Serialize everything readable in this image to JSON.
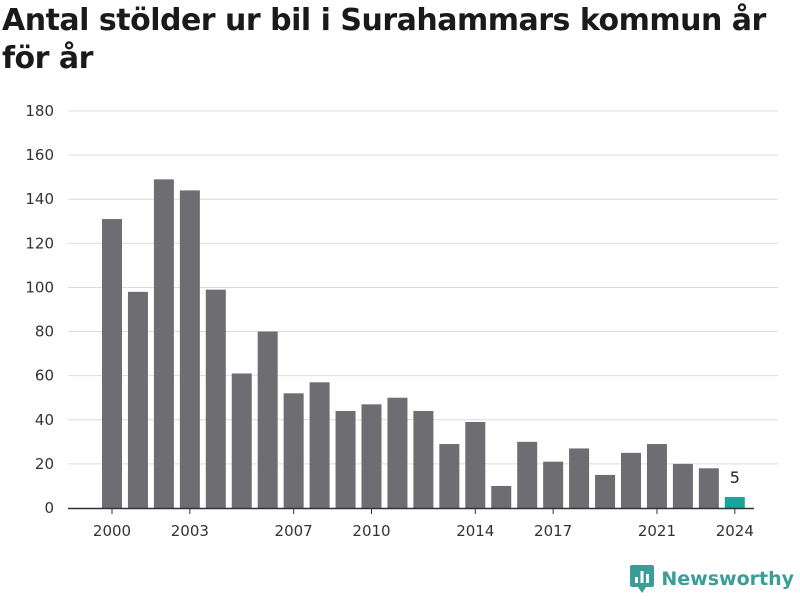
{
  "title": "Antal stölder ur bil i Surahammars kommun år för år",
  "brand": {
    "name": "Newsworthy",
    "icon": "bar-chart-logo-icon",
    "color": "#3a9e97"
  },
  "colors": {
    "bar": "#6e6d72",
    "highlight": "#1aa39a",
    "grid": "#dcdcdc",
    "axis": "#333333"
  },
  "chart_data": {
    "type": "bar",
    "title": "Antal stölder ur bil i Surahammars kommun år för år",
    "xlabel": "",
    "ylabel": "",
    "x": [
      2000,
      2001,
      2002,
      2003,
      2004,
      2005,
      2006,
      2007,
      2008,
      2009,
      2010,
      2011,
      2012,
      2013,
      2014,
      2015,
      2016,
      2017,
      2018,
      2019,
      2020,
      2021,
      2022,
      2023,
      2024
    ],
    "values": [
      131,
      98,
      149,
      144,
      99,
      61,
      80,
      52,
      57,
      44,
      47,
      50,
      44,
      29,
      39,
      10,
      30,
      21,
      27,
      15,
      25,
      29,
      20,
      18,
      5
    ],
    "x_ticks": [
      "2000",
      "2003",
      "2007",
      "2010",
      "2014",
      "2017",
      "2021",
      "2024"
    ],
    "y_ticks": [
      "0",
      "20",
      "40",
      "60",
      "80",
      "100",
      "120",
      "140",
      "160",
      "180"
    ],
    "ylim": [
      0,
      180
    ],
    "grid": true,
    "highlight_index": 24,
    "data_labels": [
      {
        "index": 24,
        "text": "5"
      }
    ]
  }
}
